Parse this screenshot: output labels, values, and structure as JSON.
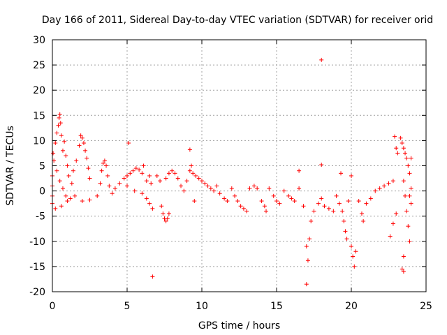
{
  "chart_data": {
    "type": "scatter",
    "title": "Day 166 of 2011, Sidereal Day-to-day VTEC variation (SDTVAR) for receiver orid",
    "xlabel": "GPS time / hours",
    "ylabel": "SDTVAR / TECUs",
    "xlim": [
      0,
      25
    ],
    "ylim": [
      -20,
      30
    ],
    "xticks": [
      0,
      5,
      10,
      15,
      20,
      25
    ],
    "yticks": [
      -20,
      -15,
      -10,
      -5,
      0,
      5,
      10,
      15,
      20,
      25,
      30
    ],
    "grid": true,
    "marker": "+",
    "color": "#ff0000",
    "series": [
      {
        "name": "SDTVAR",
        "points": [
          [
            0.0,
            -2.5
          ],
          [
            0.0,
            -1.0
          ],
          [
            0.0,
            1.0
          ],
          [
            0.0,
            3.0
          ],
          [
            0.05,
            7.5
          ],
          [
            0.1,
            6.0
          ],
          [
            0.2,
            9.5
          ],
          [
            0.3,
            11.5
          ],
          [
            0.4,
            13.0
          ],
          [
            0.45,
            14.5
          ],
          [
            0.5,
            15.2
          ],
          [
            0.55,
            13.5
          ],
          [
            0.6,
            11.0
          ],
          [
            0.7,
            8.0
          ],
          [
            0.8,
            9.8
          ],
          [
            0.9,
            7.0
          ],
          [
            1.0,
            5.0
          ],
          [
            1.1,
            3.0
          ],
          [
            0.3,
            4.0
          ],
          [
            0.5,
            2.0
          ],
          [
            0.7,
            0.5
          ],
          [
            0.9,
            -1.0
          ],
          [
            1.0,
            -2.0
          ],
          [
            0.2,
            -3.5
          ],
          [
            0.6,
            -3.0
          ],
          [
            1.2,
            -1.5
          ],
          [
            1.3,
            1.5
          ],
          [
            1.4,
            4.0
          ],
          [
            1.6,
            6.0
          ],
          [
            1.8,
            9.0
          ],
          [
            1.9,
            11.0
          ],
          [
            2.0,
            10.5
          ],
          [
            2.1,
            9.5
          ],
          [
            2.2,
            8.0
          ],
          [
            2.3,
            6.5
          ],
          [
            2.4,
            4.5
          ],
          [
            2.5,
            2.5
          ],
          [
            1.5,
            -1.0
          ],
          [
            2.0,
            -2.0
          ],
          [
            2.5,
            -1.8
          ],
          [
            3.0,
            -1.0
          ],
          [
            3.2,
            1.5
          ],
          [
            3.3,
            4.0
          ],
          [
            3.4,
            5.5
          ],
          [
            3.5,
            6.0
          ],
          [
            3.6,
            5.0
          ],
          [
            3.7,
            3.0
          ],
          [
            3.8,
            1.0
          ],
          [
            4.0,
            -0.5
          ],
          [
            4.2,
            0.5
          ],
          [
            4.5,
            1.5
          ],
          [
            4.8,
            2.5
          ],
          [
            5.0,
            3.0
          ],
          [
            5.2,
            3.5
          ],
          [
            5.4,
            4.0
          ],
          [
            5.6,
            4.5
          ],
          [
            5.8,
            4.2
          ],
          [
            6.0,
            3.5
          ],
          [
            6.1,
            5.0
          ],
          [
            5.1,
            9.5
          ],
          [
            5.0,
            1.0
          ],
          [
            5.5,
            0.0
          ],
          [
            6.0,
            -0.5
          ],
          [
            6.3,
            -1.5
          ],
          [
            6.5,
            -2.5
          ],
          [
            6.7,
            -3.5
          ],
          [
            6.3,
            2.0
          ],
          [
            6.5,
            3.0
          ],
          [
            6.6,
            1.5
          ],
          [
            6.7,
            -17.0
          ],
          [
            7.0,
            3.0
          ],
          [
            7.2,
            2.0
          ],
          [
            7.3,
            -3.0
          ],
          [
            7.4,
            -4.5
          ],
          [
            7.5,
            -5.5
          ],
          [
            7.6,
            -6.0
          ],
          [
            7.7,
            -5.5
          ],
          [
            7.8,
            -4.5
          ],
          [
            7.6,
            2.5
          ],
          [
            7.8,
            3.5
          ],
          [
            8.0,
            4.0
          ],
          [
            8.2,
            3.5
          ],
          [
            8.4,
            2.5
          ],
          [
            8.6,
            1.0
          ],
          [
            8.8,
            0.0
          ],
          [
            9.0,
            2.0
          ],
          [
            9.2,
            4.0
          ],
          [
            9.3,
            5.0
          ],
          [
            9.2,
            8.2
          ],
          [
            9.4,
            3.5
          ],
          [
            9.5,
            -2.0
          ],
          [
            9.6,
            3.0
          ],
          [
            9.8,
            2.5
          ],
          [
            10.0,
            2.0
          ],
          [
            10.2,
            1.5
          ],
          [
            10.4,
            1.0
          ],
          [
            10.6,
            0.5
          ],
          [
            10.8,
            0.0
          ],
          [
            11.0,
            1.0
          ],
          [
            11.2,
            -0.5
          ],
          [
            11.5,
            -1.5
          ],
          [
            11.7,
            -2.0
          ],
          [
            12.0,
            0.5
          ],
          [
            12.2,
            -1.0
          ],
          [
            12.4,
            -2.0
          ],
          [
            12.6,
            -3.0
          ],
          [
            12.8,
            -3.5
          ],
          [
            13.0,
            -4.0
          ],
          [
            13.2,
            0.5
          ],
          [
            13.5,
            1.0
          ],
          [
            13.7,
            0.5
          ],
          [
            14.0,
            -2.0
          ],
          [
            14.2,
            -3.0
          ],
          [
            14.3,
            -4.0
          ],
          [
            14.5,
            0.5
          ],
          [
            14.8,
            -1.0
          ],
          [
            15.0,
            -2.0
          ],
          [
            15.2,
            -2.5
          ],
          [
            15.5,
            0.0
          ],
          [
            15.8,
            -1.0
          ],
          [
            16.0,
            -1.5
          ],
          [
            16.2,
            -2.0
          ],
          [
            16.5,
            4.0
          ],
          [
            16.5,
            0.5
          ],
          [
            16.8,
            -3.0
          ],
          [
            17.0,
            -11.0
          ],
          [
            17.0,
            -18.5
          ],
          [
            17.2,
            -9.5
          ],
          [
            17.1,
            -13.8
          ],
          [
            17.3,
            -6.0
          ],
          [
            17.5,
            -4.0
          ],
          [
            17.8,
            -2.5
          ],
          [
            18.0,
            5.2
          ],
          [
            18.0,
            26.0
          ],
          [
            18.0,
            -1.5
          ],
          [
            18.2,
            -3.0
          ],
          [
            18.5,
            -3.5
          ],
          [
            18.8,
            -4.0
          ],
          [
            19.0,
            -1.0
          ],
          [
            19.2,
            -2.5
          ],
          [
            19.4,
            -4.0
          ],
          [
            19.5,
            -6.0
          ],
          [
            19.6,
            -8.0
          ],
          [
            19.7,
            -9.5
          ],
          [
            19.3,
            3.5
          ],
          [
            19.8,
            -2.0
          ],
          [
            20.0,
            3.0
          ],
          [
            20.0,
            -11.0
          ],
          [
            20.1,
            -13.0
          ],
          [
            20.2,
            -15.0
          ],
          [
            20.3,
            -12.0
          ],
          [
            20.5,
            -2.0
          ],
          [
            20.7,
            -4.5
          ],
          [
            20.8,
            -6.0
          ],
          [
            21.0,
            -2.5
          ],
          [
            21.3,
            -1.5
          ],
          [
            21.6,
            0.0
          ],
          [
            21.9,
            0.5
          ],
          [
            22.2,
            1.0
          ],
          [
            22.5,
            1.5
          ],
          [
            22.8,
            2.0
          ],
          [
            22.6,
            -9.0
          ],
          [
            22.8,
            -6.5
          ],
          [
            23.0,
            -4.5
          ],
          [
            22.9,
            10.8
          ],
          [
            23.0,
            8.5
          ],
          [
            23.1,
            7.5
          ],
          [
            23.3,
            10.5
          ],
          [
            23.4,
            9.5
          ],
          [
            23.5,
            8.5
          ],
          [
            23.6,
            7.5
          ],
          [
            23.7,
            6.5
          ],
          [
            23.8,
            5.0
          ],
          [
            23.9,
            3.5
          ],
          [
            23.5,
            2.0
          ],
          [
            23.6,
            -1.0
          ],
          [
            23.7,
            -4.0
          ],
          [
            23.8,
            -7.0
          ],
          [
            23.9,
            -10.0
          ],
          [
            23.5,
            -13.0
          ],
          [
            23.4,
            -15.5
          ],
          [
            23.5,
            -16.0
          ],
          [
            23.9,
            -1.0
          ],
          [
            24.0,
            0.5
          ],
          [
            24.0,
            -2.5
          ],
          [
            24.0,
            6.5
          ]
        ]
      }
    ]
  }
}
